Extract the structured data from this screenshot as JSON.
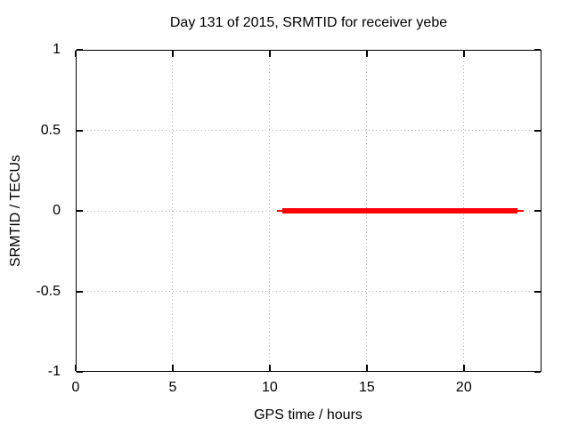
{
  "window": {
    "background_color": "#ffffff"
  },
  "chart_data": {
    "type": "line",
    "title": "Day 131 of 2015, SRMTID for receiver yebe",
    "xlabel": "GPS time / hours",
    "ylabel": "SRMTID / TECUs",
    "xlim": [
      0,
      24
    ],
    "ylim": [
      -1,
      1
    ],
    "xticks": [
      {
        "value": 0,
        "label": "0"
      },
      {
        "value": 5,
        "label": "5"
      },
      {
        "value": 10,
        "label": "10"
      },
      {
        "value": 15,
        "label": "15"
      },
      {
        "value": 20,
        "label": "20"
      }
    ],
    "yticks": [
      {
        "value": 1,
        "label": "1"
      },
      {
        "value": 0.5,
        "label": "0.5"
      },
      {
        "value": 0,
        "label": "0"
      },
      {
        "value": -0.5,
        "label": "-0.5"
      },
      {
        "value": -1,
        "label": "-1"
      }
    ],
    "grid": true,
    "grid_style": "dotted",
    "legend_position": "none",
    "series": [
      {
        "name": "SRMTID",
        "color": "#ff0000",
        "description": "Flat horizontal line at 0 TECUs from about hour 10.4 to hour 23.0",
        "x": [
          10.37,
          23.08
        ],
        "y": [
          0,
          0
        ],
        "segments": [
          {
            "x1": 10.37,
            "x2": 23.08,
            "y": 0,
            "thickness_px": 2
          },
          {
            "x1": 10.65,
            "x2": 22.77,
            "y": 0,
            "thickness_px": 6
          }
        ]
      }
    ],
    "colors": {
      "background": "#ffffff",
      "border": "#000000",
      "grid": "#b2b2b2",
      "text": "#000000",
      "series": "#ff0000"
    }
  }
}
